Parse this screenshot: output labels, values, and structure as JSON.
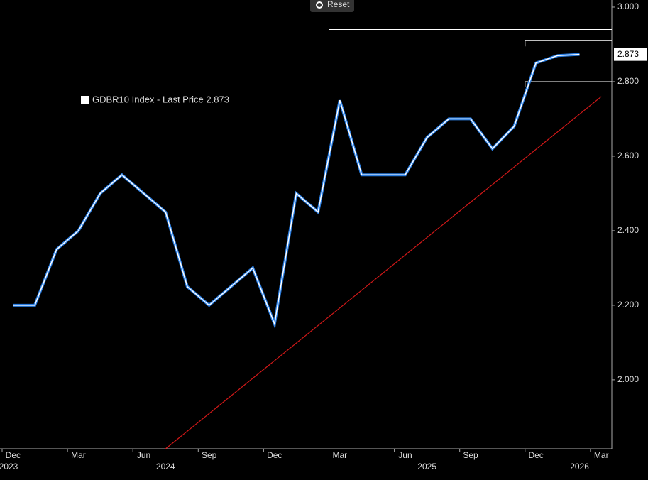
{
  "chart_data": {
    "type": "line",
    "reset_button": "Reset",
    "legend_label": "GDBR10 Index - Last Price 2.873",
    "last_price": {
      "value": 2.873,
      "label": "2.873"
    },
    "x": [
      "2023-12",
      "2024-01",
      "2024-02",
      "2024-03",
      "2024-04",
      "2024-05",
      "2024-06",
      "2024-07",
      "2024-08",
      "2024-09",
      "2024-10",
      "2024-11",
      "2024-12",
      "2025-01",
      "2025-02",
      "2025-03",
      "2025-04",
      "2025-05",
      "2025-06",
      "2025-07",
      "2025-08",
      "2025-09",
      "2025-10",
      "2025-11",
      "2025-12",
      "2026-01",
      "2026-02"
    ],
    "series": [
      {
        "name": "GDBR10 Index",
        "color": "#ffffff",
        "values": [
          2.2,
          2.2,
          2.35,
          2.4,
          2.5,
          2.55,
          2.5,
          2.45,
          2.25,
          2.2,
          2.25,
          2.3,
          2.15,
          2.5,
          2.45,
          2.75,
          2.55,
          2.55,
          2.55,
          2.65,
          2.7,
          2.7,
          2.62,
          2.68,
          2.85,
          2.87,
          2.873
        ]
      }
    ],
    "trendline": {
      "color": "#d01818",
      "x": [
        "2024-07",
        "2026-03"
      ],
      "values": [
        1.815,
        2.76
      ]
    },
    "levels": [
      {
        "value": 2.94,
        "from": "2025-03"
      },
      {
        "value": 2.91,
        "from": "2025-12"
      },
      {
        "value": 2.8,
        "from": "2025-12"
      }
    ],
    "ylim": [
      1.815,
      3.019
    ],
    "yticks": [
      {
        "value": 2.0,
        "label": "2.000"
      },
      {
        "value": 2.2,
        "label": "2.200"
      },
      {
        "value": 2.4,
        "label": "2.400"
      },
      {
        "value": 2.6,
        "label": "2.600"
      },
      {
        "value": 2.8,
        "label": "2.800"
      },
      {
        "value": 3.0,
        "label": "3.000"
      }
    ],
    "xticks": [
      {
        "value": "2023-12",
        "label": "Dec"
      },
      {
        "value": "2024-03",
        "label": "Mar"
      },
      {
        "value": "2024-06",
        "label": "Jun"
      },
      {
        "value": "2024-09",
        "label": "Sep"
      },
      {
        "value": "2024-12",
        "label": "Dec"
      },
      {
        "value": "2025-03",
        "label": "Mar"
      },
      {
        "value": "2025-06",
        "label": "Jun"
      },
      {
        "value": "2025-09",
        "label": "Sep"
      },
      {
        "value": "2025-12",
        "label": "Dec"
      },
      {
        "value": "2026-03",
        "label": "Mar"
      }
    ],
    "year_ticks": [
      {
        "value": "2023-12",
        "label": "2023"
      },
      {
        "value": "2024-07",
        "label": "2024"
      },
      {
        "value": "2025-07",
        "label": "2025"
      },
      {
        "value": "2026-02",
        "label": "2026"
      }
    ]
  }
}
